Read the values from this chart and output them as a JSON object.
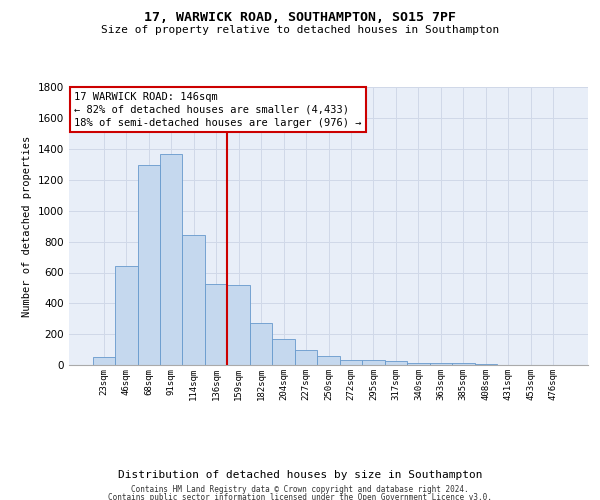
{
  "title": "17, WARWICK ROAD, SOUTHAMPTON, SO15 7PF",
  "subtitle": "Size of property relative to detached houses in Southampton",
  "xlabel": "Distribution of detached houses by size in Southampton",
  "ylabel": "Number of detached properties",
  "categories": [
    "23sqm",
    "46sqm",
    "68sqm",
    "91sqm",
    "114sqm",
    "136sqm",
    "159sqm",
    "182sqm",
    "204sqm",
    "227sqm",
    "250sqm",
    "272sqm",
    "295sqm",
    "317sqm",
    "340sqm",
    "363sqm",
    "385sqm",
    "408sqm",
    "431sqm",
    "453sqm",
    "476sqm"
  ],
  "values": [
    50,
    640,
    1300,
    1370,
    840,
    525,
    520,
    275,
    170,
    100,
    60,
    35,
    30,
    25,
    15,
    10,
    10,
    5,
    3,
    2,
    2
  ],
  "bar_color": "#c5d8ee",
  "bar_edge_color": "#6699cc",
  "vline_color": "#cc0000",
  "vline_pos": 5.5,
  "annotation_text": "17 WARWICK ROAD: 146sqm\n← 82% of detached houses are smaller (4,433)\n18% of semi-detached houses are larger (976) →",
  "annotation_box_facecolor": "#ffffff",
  "annotation_box_edgecolor": "#cc0000",
  "ylim": [
    0,
    1800
  ],
  "yticks": [
    0,
    200,
    400,
    600,
    800,
    1000,
    1200,
    1400,
    1600,
    1800
  ],
  "grid_color": "#d0d8e8",
  "axes_bg": "#e8eef8",
  "footer_line1": "Contains HM Land Registry data © Crown copyright and database right 2024.",
  "footer_line2": "Contains public sector information licensed under the Open Government Licence v3.0."
}
